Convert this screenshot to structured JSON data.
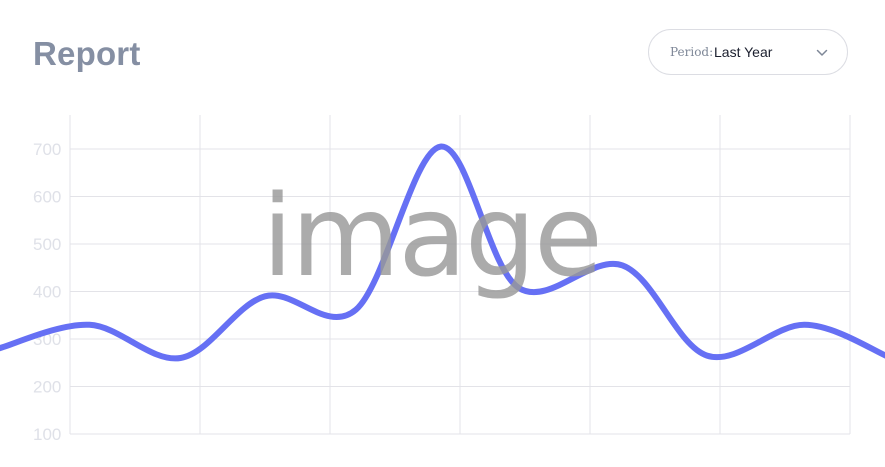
{
  "header": {
    "title": "Report"
  },
  "period_select": {
    "label": "Period:",
    "value": "Last Year",
    "icon": "chevron-down-icon"
  },
  "watermark": {
    "text": "image"
  },
  "colors": {
    "line": "#6670f4",
    "grid": "#e3e3e8",
    "tick_text": "#dfe1e8",
    "title": "#858fa3"
  },
  "chart_data": {
    "type": "line",
    "title": "",
    "xlabel": "",
    "ylabel": "",
    "ylim": [
      100,
      770
    ],
    "yticks": [
      100,
      200,
      300,
      400,
      500,
      600,
      700
    ],
    "xlim": [
      -0.55,
      6.3
    ],
    "grid": true,
    "smooth": true,
    "series": [
      {
        "values": [
          [
            -0.55,
            280
          ],
          [
            0.15,
            330
          ],
          [
            0.85,
            260
          ],
          [
            1.5,
            390
          ],
          [
            2.2,
            362
          ],
          [
            2.85,
            705
          ],
          [
            3.45,
            408
          ],
          [
            4.25,
            455
          ],
          [
            4.9,
            265
          ],
          [
            5.65,
            330
          ],
          [
            6.3,
            262
          ]
        ]
      }
    ]
  }
}
